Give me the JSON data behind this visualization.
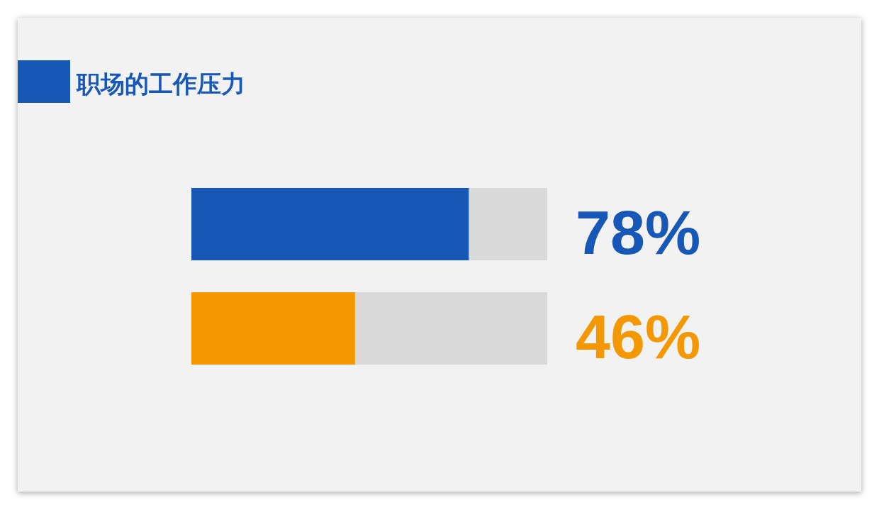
{
  "chart_data": {
    "type": "bar",
    "orientation": "horizontal",
    "stacked": true,
    "title": "职场的工作压力",
    "categories": [
      null,
      null
    ],
    "xlim": [
      0,
      100
    ],
    "tick_labels": false,
    "series": [
      {
        "colors": [
          "#1757b5",
          "#f39800"
        ],
        "values": [
          78,
          46
        ],
        "value_labels": [
          "78%",
          "46%"
        ]
      },
      {
        "color": "#d9d9d9",
        "values": [
          22,
          54
        ]
      }
    ]
  }
}
